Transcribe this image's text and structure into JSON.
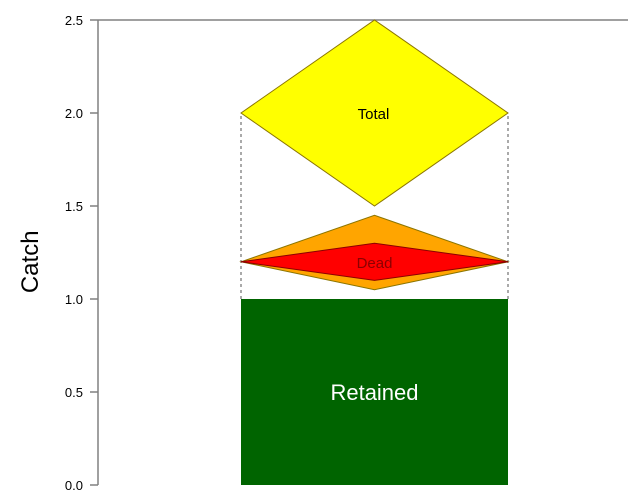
{
  "chart_data": {
    "type": "other",
    "ylabel": "Catch",
    "xlabel": "",
    "ylim": [
      0,
      2.5
    ],
    "yticks": [
      0.0,
      0.5,
      1.0,
      1.5,
      2.0,
      2.5
    ],
    "ytick_labels": [
      "0.0",
      "0.5",
      "1.0",
      "1.5",
      "2.0",
      "2.5"
    ],
    "grid": false,
    "elements": [
      {
        "name": "Retained",
        "shape": "rectangle",
        "y_min": 0.0,
        "y_max": 1.0,
        "color": "#006400",
        "label_color": "#ffffff"
      },
      {
        "name": "Dead",
        "shape": "diamond",
        "y_center": 1.2,
        "y_min": 1.05,
        "y_max": 1.45,
        "outer_color": "#ffa500",
        "inner_color": "#ff0000",
        "inner_y_min": 1.1,
        "inner_y_max": 1.3
      },
      {
        "name": "Total",
        "shape": "diamond",
        "y_center": 2.0,
        "y_min": 1.5,
        "y_max": 2.5,
        "color": "#ffff00"
      }
    ],
    "connector_lines": [
      {
        "style": "dashed",
        "y_from": 1.0,
        "y_to": 2.0
      }
    ]
  },
  "colors": {
    "axis": "#808080",
    "text": "#000000",
    "outline": "#8b7500"
  }
}
